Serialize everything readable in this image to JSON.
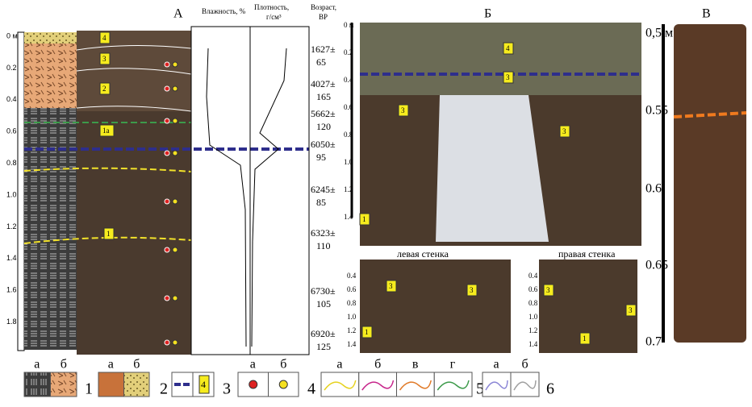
{
  "panel_a": {
    "letter": "А",
    "depth_ticks": [
      "0 м",
      "0.2",
      "0.4",
      "0.6",
      "0.8",
      "1.0",
      "1.2",
      "1.4",
      "1.6",
      "1.8"
    ],
    "layers": [
      "4",
      "3",
      "2",
      "1а",
      "1"
    ],
    "moisture_header": "Влажность, %",
    "density_header": [
      "Плотность,",
      "г/см³"
    ],
    "age_header": [
      "Возраст,",
      "ВР"
    ],
    "ages": [
      [
        "1627±",
        "65"
      ],
      [
        "4027±",
        "165"
      ],
      [
        "5662±",
        "120"
      ],
      [
        "6050±",
        "95"
      ],
      [
        "6245±",
        "85"
      ],
      [
        "6323±",
        "110"
      ],
      [
        "6730±",
        "105"
      ],
      [
        "6920±",
        "125"
      ]
    ]
  },
  "panel_b": {
    "letter": "Б",
    "depth_ticks": [
      "0 м",
      "0.2",
      "0.4",
      "0.6",
      "0.8",
      "1.0",
      "1.2",
      "1.4"
    ],
    "layers": [
      "4",
      "3",
      "3",
      "3",
      "1"
    ],
    "left_wall": "левая стенка",
    "right_wall": "правая стенка",
    "left_wall_ticks": [
      "0.4",
      "0.6",
      "0.8",
      "1.0",
      "1.2",
      "1.4"
    ],
    "left_wall_layers": [
      "3",
      "3",
      "1"
    ],
    "right_wall_ticks": [
      "0.4",
      "0.6",
      "0.8",
      "1.0",
      "1.2",
      "1.4"
    ],
    "right_wall_layers": [
      "3",
      "3",
      "1"
    ]
  },
  "panel_c": {
    "letter": "В",
    "depth_ticks": [
      "0,5 м",
      "0.55",
      "0.6",
      "0.65",
      "0.7"
    ]
  },
  "legend": {
    "items": [
      {
        "sub": [
          "а",
          "б"
        ],
        "number": "1"
      },
      {
        "sub": [
          "а",
          "б"
        ],
        "number": "2"
      },
      {
        "box_label": "4",
        "number": "3"
      },
      {
        "sub": [
          "а",
          "б"
        ],
        "number": "4"
      },
      {
        "sub": [
          "а",
          "б",
          "в",
          "г"
        ],
        "number": "5"
      },
      {
        "sub": [
          "а",
          "б"
        ],
        "number": "6"
      }
    ]
  }
}
